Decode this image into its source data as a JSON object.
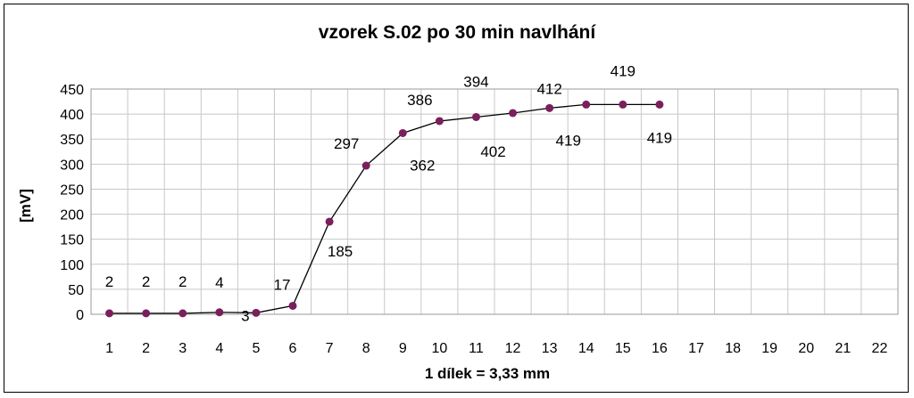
{
  "chart_data": {
    "type": "line",
    "title": "vzorek S.02 po 30 min navlhání",
    "xlabel": "1 dílek = 3,33 mm",
    "ylabel": "[mV]",
    "x_categories": [
      "1",
      "2",
      "3",
      "4",
      "5",
      "6",
      "7",
      "8",
      "9",
      "10",
      "11",
      "12",
      "13",
      "14",
      "15",
      "16",
      "17",
      "18",
      "19",
      "20",
      "21",
      "22"
    ],
    "series": [
      {
        "x": [
          1,
          2,
          3,
          4,
          5,
          6,
          7,
          8,
          9,
          10,
          11,
          12,
          13,
          14,
          15,
          16
        ],
        "values": [
          2,
          2,
          2,
          4,
          3,
          17,
          185,
          297,
          362,
          386,
          394,
          402,
          412,
          419,
          419,
          419
        ],
        "data_labels": [
          "2",
          "2",
          "2",
          "4",
          "3",
          "17",
          "185",
          "297",
          "362",
          "386",
          "394",
          "402",
          "412",
          "419",
          "419",
          "419"
        ]
      }
    ],
    "ylim": [
      0,
      450
    ],
    "yticks": [
      0,
      50,
      100,
      150,
      200,
      250,
      300,
      350,
      400,
      450
    ],
    "grid": true,
    "legend": "none",
    "colors": {
      "line": "#000000",
      "marker": "#7a1f5c",
      "grid": "#c8c8c8"
    }
  }
}
